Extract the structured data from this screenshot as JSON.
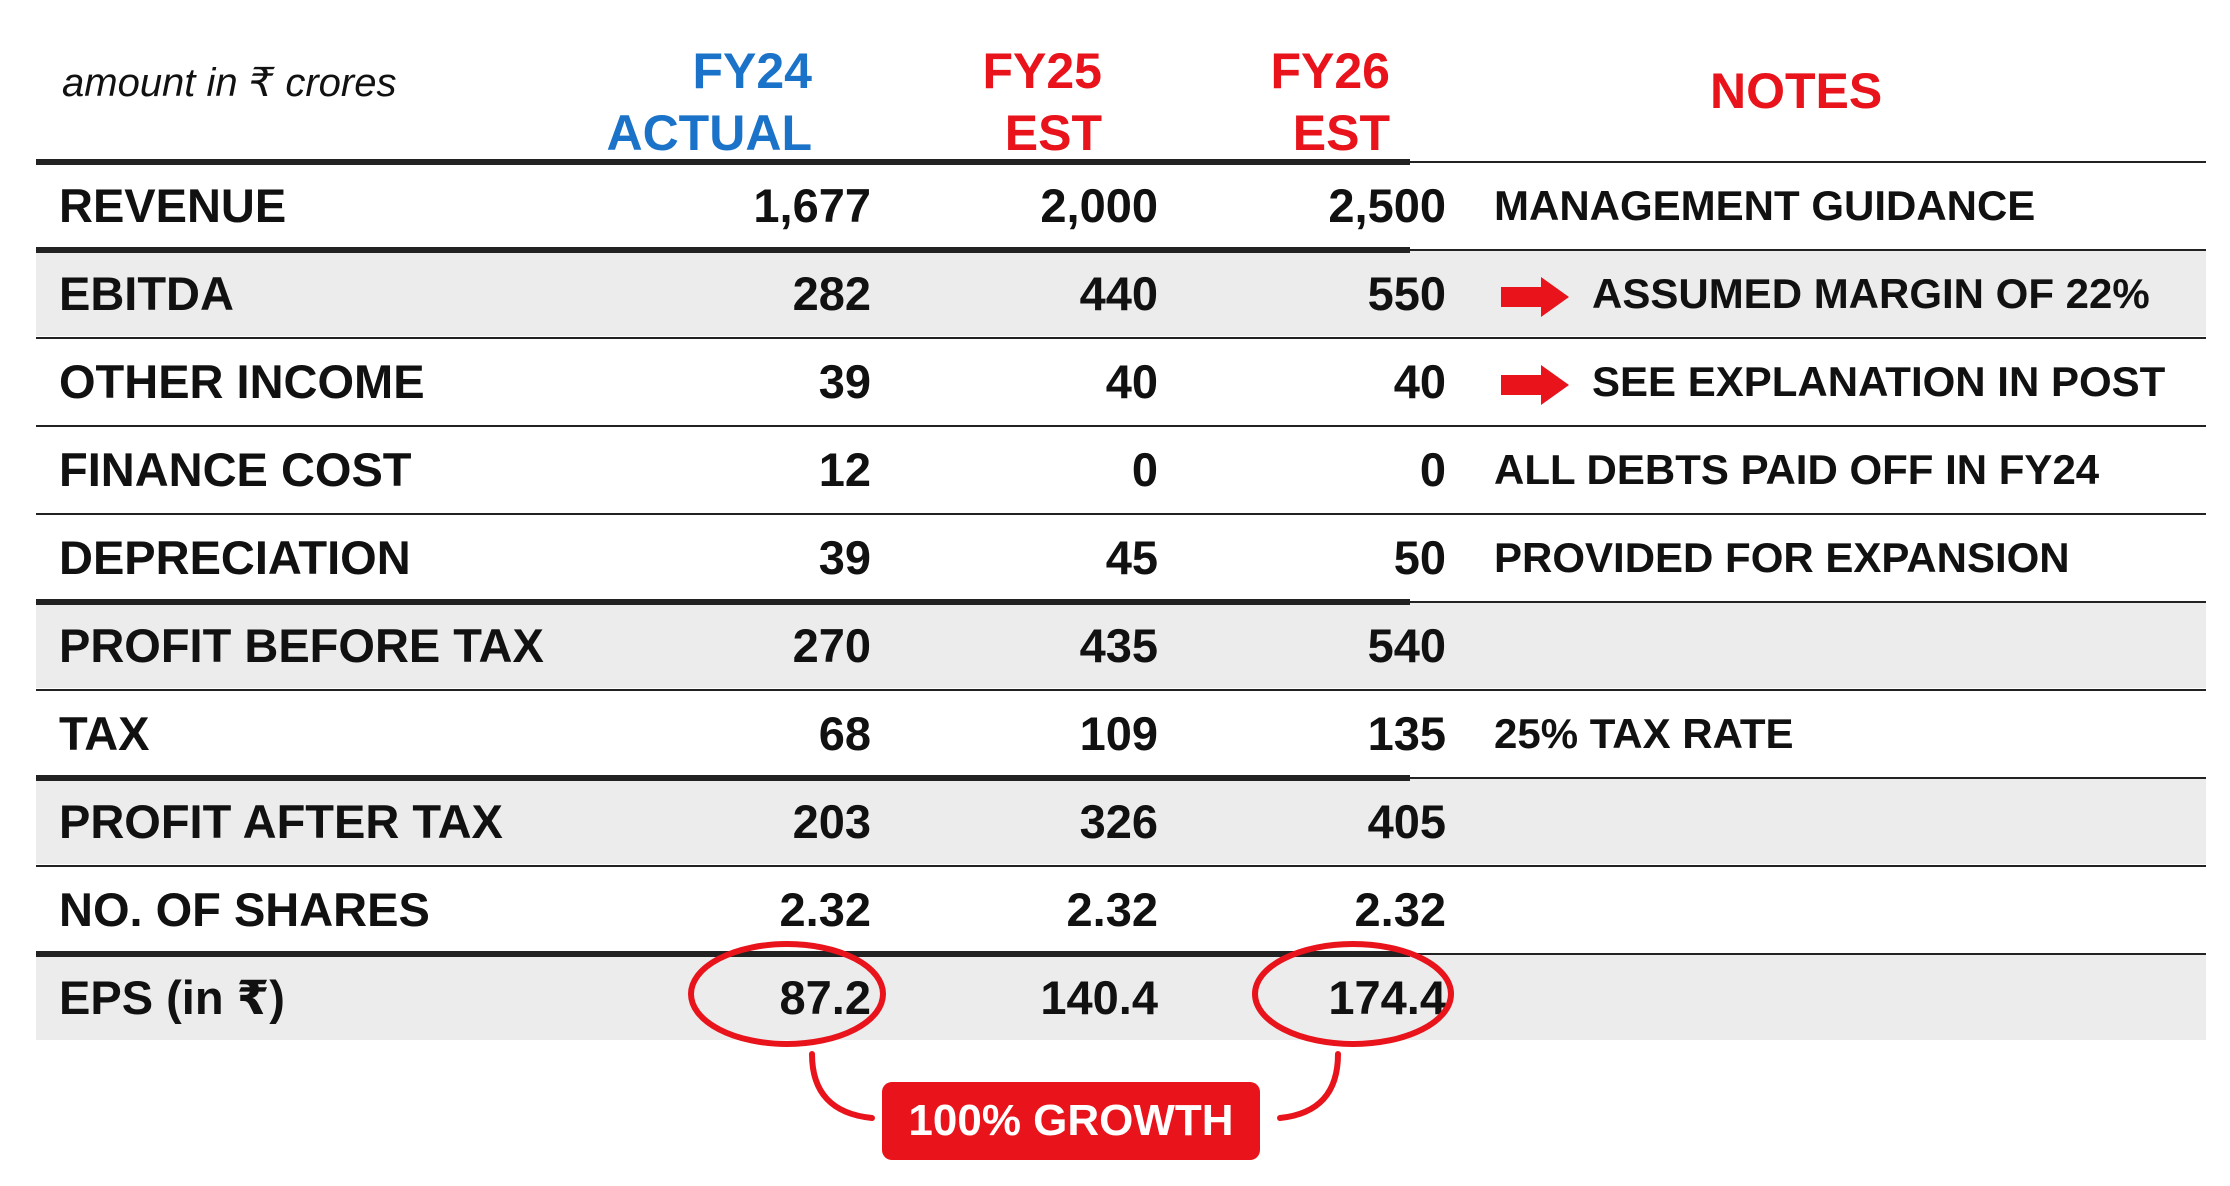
{
  "caption": "amount in ₹ crores",
  "headers": {
    "fy24": [
      "FY24",
      "ACTUAL"
    ],
    "fy25": [
      "FY25",
      "EST"
    ],
    "fy26": [
      "FY26",
      "EST"
    ],
    "notes": "NOTES"
  },
  "rows": [
    {
      "label": "REVENUE",
      "fy24": "1,677",
      "fy25": "2,000",
      "fy26": "2,500",
      "note": "MANAGEMENT GUIDANCE",
      "arrow": false
    },
    {
      "label": "EBITDA",
      "fy24": "282",
      "fy25": "440",
      "fy26": "550",
      "note": "ASSUMED MARGIN OF 22%",
      "arrow": true
    },
    {
      "label": "OTHER INCOME",
      "fy24": "39",
      "fy25": "40",
      "fy26": "40",
      "note": "SEE EXPLANATION IN POST",
      "arrow": true
    },
    {
      "label": "FINANCE COST",
      "fy24": "12",
      "fy25": "0",
      "fy26": "0",
      "note": "ALL DEBTS PAID OFF IN FY24",
      "arrow": false
    },
    {
      "label": "DEPRECIATION",
      "fy24": "39",
      "fy25": "45",
      "fy26": "50",
      "note": "PROVIDED FOR EXPANSION",
      "arrow": false
    },
    {
      "label": "PROFIT BEFORE TAX",
      "fy24": "270",
      "fy25": "435",
      "fy26": "540",
      "note": "",
      "arrow": false
    },
    {
      "label": "TAX",
      "fy24": "68",
      "fy25": "109",
      "fy26": "135",
      "note": "25% TAX RATE",
      "arrow": false
    },
    {
      "label": "PROFIT AFTER TAX",
      "fy24": "203",
      "fy25": "326",
      "fy26": "405",
      "note": "",
      "arrow": false
    },
    {
      "label": "NO. OF SHARES",
      "fy24": "2.32",
      "fy25": "2.32",
      "fy26": "2.32",
      "note": "",
      "arrow": false
    },
    {
      "label": "EPS (in ₹)",
      "fy24": "87.2",
      "fy25": "140.4",
      "fy26": "174.4",
      "note": "",
      "arrow": false
    }
  ],
  "growth_label": "100% GROWTH",
  "colors": {
    "blue": "#1a73c8",
    "red": "#e8131b",
    "shade": "#ececec"
  }
}
